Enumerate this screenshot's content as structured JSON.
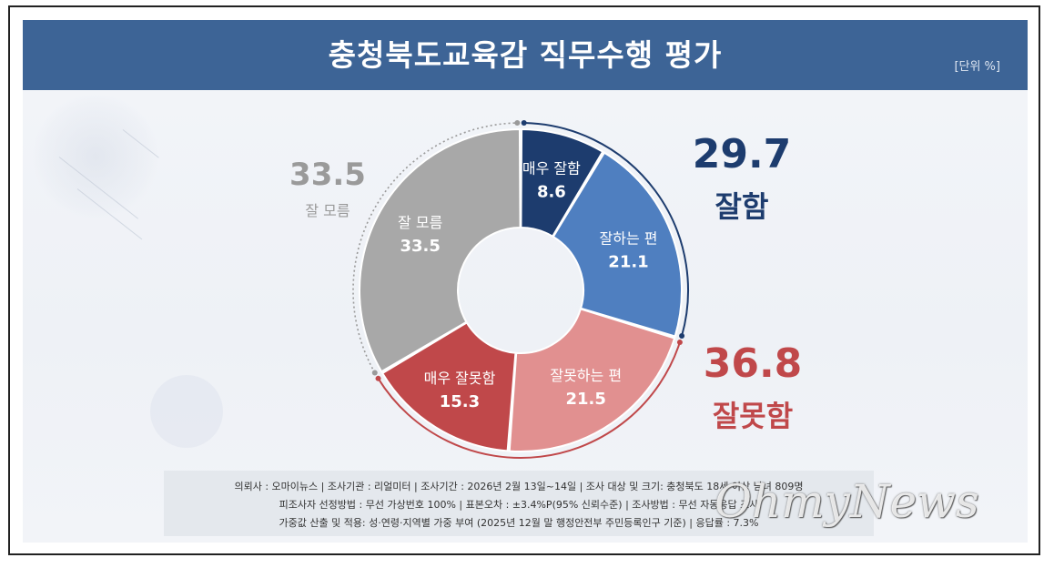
{
  "header": {
    "title": "충청북도교육감 직무수행 평가",
    "unit": "[단위 %]"
  },
  "colors": {
    "header_bg": "#3d6496",
    "very_good": "#1d3c6e",
    "good": "#4f7fc0",
    "bad": "#e19090",
    "very_bad": "#c0484a",
    "unknown": "#a8a8a8",
    "positive_text": "#1d3c6e",
    "negative_text": "#c0484a",
    "unknown_text": "#9a9a9a"
  },
  "summary": {
    "positive": {
      "value": "29.7",
      "label": "잘함"
    },
    "negative": {
      "value": "36.8",
      "label": "잘못함"
    },
    "unknown": {
      "value": "33.5",
      "label": "잘 모름"
    }
  },
  "chart_data": {
    "type": "pie",
    "donut": true,
    "categories": [
      "매우 잘함",
      "잘하는 편",
      "잘못하는 편",
      "매우 잘못함",
      "잘 모름"
    ],
    "values": [
      8.6,
      21.1,
      21.5,
      15.3,
      33.5
    ],
    "unit": "%",
    "legend": "none"
  },
  "footnote": {
    "line1": "의뢰사 : 오마이뉴스 | 조사기관 : 리얼미터 | 조사기간 : 2026년 2월 13일~14일 | 조사 대상 및 크기: 충청북도 18세 이상 남녀 809명",
    "line2": "피조사자 선정방법 : 무선 가상번호 100% | 표본오차 : ±3.4%P(95% 신뢰수준) | 조사방법 : 무선 자동응답 조사",
    "line3": "가중값 산출 및 적용: 성·연령·지역별 가중 부여 (2025년 12월 말 행정안전부 주민등록인구 기준) | 응답률 : 7.3%"
  },
  "watermark": "OhmyNews"
}
